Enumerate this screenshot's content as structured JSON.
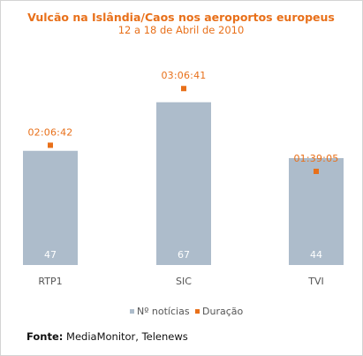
{
  "chart_data": {
    "type": "bar",
    "title": "Vulcão na Islândia/Caos nos aeroportos europeus",
    "subtitle": "12 a 18 de Abril de 2010",
    "categories": [
      "RTP1",
      "SIC",
      "TVI"
    ],
    "series": [
      {
        "name": "Nº notícias",
        "values": [
          47,
          67,
          44
        ],
        "color": "#adbccb"
      },
      {
        "name": "Duração",
        "values": [
          "02:06:42",
          "03:06:41",
          "01:39:05"
        ],
        "seconds": [
          7602,
          11201,
          5945
        ],
        "color": "#e8701a"
      }
    ],
    "ylim": [
      0,
      80
    ],
    "grid": false,
    "legend": "bottom-center"
  },
  "source": {
    "label": "Fonte:",
    "text": "MediaMonitor, Telenews"
  }
}
